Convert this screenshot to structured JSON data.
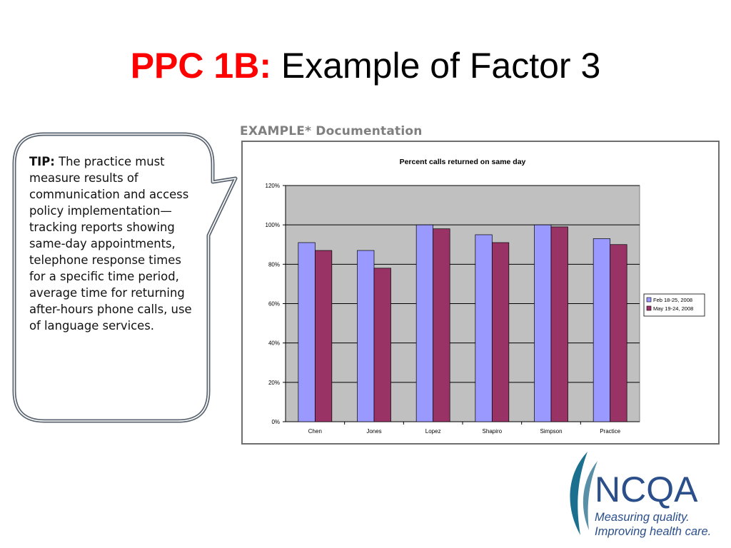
{
  "slide": {
    "title_prefix": "PPC 1B:",
    "title_rest": " Example of Factor 3"
  },
  "tip": {
    "label": "TIP:",
    "text": " The practice must measure results of communication and access policy implementation—tracking reports showing same-day appointments, telephone response times for a specific time period, average time for returning after-hours phone calls, use of language services."
  },
  "doc_heading": "EXAMPLE* Documentation",
  "logo": {
    "wordmark": "NCQA",
    "tagline_1": "Measuring quality.",
    "tagline_2": "Improving health care."
  },
  "colors": {
    "title_accent": "#ff0000",
    "series_1": "#9999ff",
    "series_2": "#993366",
    "plot_background": "#c0c0c0",
    "logo_teal": "#1b6f8f",
    "logo_blue": "#2b4f8a"
  },
  "chart_data": {
    "type": "bar",
    "title": "Percent calls returned on same day",
    "categories": [
      "Chen",
      "Jones",
      "Lopez",
      "Shapiro",
      "Simpson",
      "Practice"
    ],
    "series": [
      {
        "name": "Feb 18-25, 2008",
        "values": [
          91,
          87,
          100,
          95,
          100,
          93
        ]
      },
      {
        "name": "May 19-24, 2008",
        "values": [
          87,
          78,
          98,
          91,
          99,
          90
        ]
      }
    ],
    "y_ticks": [
      "0%",
      "20%",
      "40%",
      "60%",
      "80%",
      "100%",
      "120%"
    ],
    "ylim": [
      0,
      120
    ],
    "y_unit": "%",
    "grid": true,
    "legend_position": "right"
  }
}
